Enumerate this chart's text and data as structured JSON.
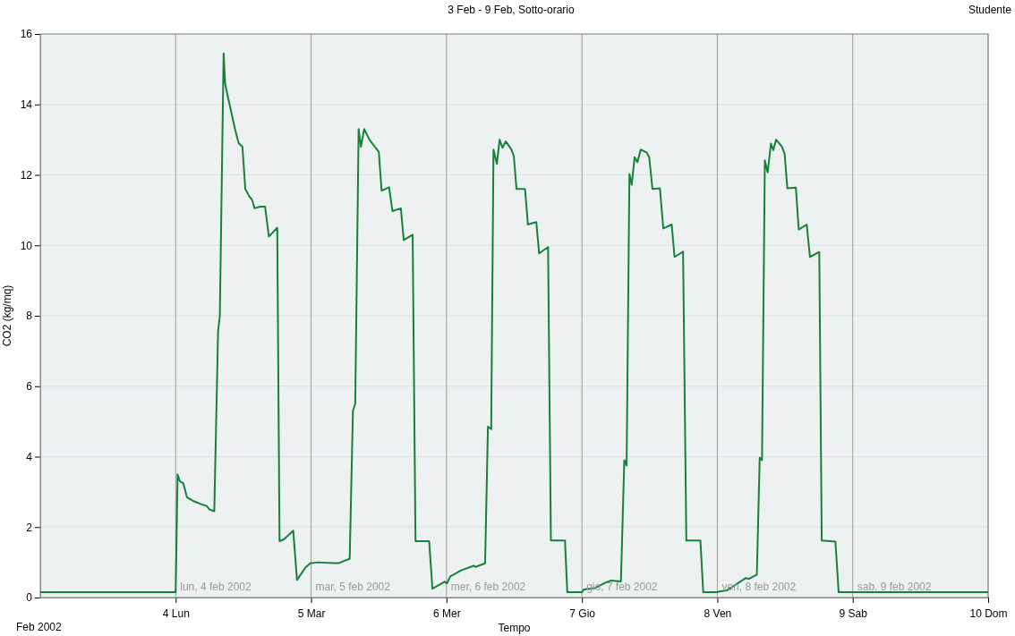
{
  "chart_data": {
    "type": "line",
    "title": "3 Feb - 9 Feb, Sotto-orario",
    "xlabel": "Tempo",
    "ylabel": "CO2 (kg/mq)",
    "annotations": [
      "Studente",
      "Feb  2002",
      "lun, 4 feb 2002",
      "mar, 5 feb 2002",
      "mer, 6 feb 2002",
      "gio, 7 feb 2002",
      "ven, 8 feb 2002",
      "sab, 9 feb 2002"
    ],
    "xlim": [
      3,
      10
    ],
    "xticks": [
      {
        "value": 4,
        "label": "4 Lun"
      },
      {
        "value": 5,
        "label": "5 Mar"
      },
      {
        "value": 6,
        "label": "6 Mer"
      },
      {
        "value": 7,
        "label": "7 Gio"
      },
      {
        "value": 8,
        "label": "8 Ven"
      },
      {
        "value": 9,
        "label": "9 Sab"
      },
      {
        "value": 10,
        "label": "10 Dom"
      }
    ],
    "ylim": [
      0,
      16
    ],
    "yticks": [
      0,
      2,
      4,
      6,
      8,
      10,
      12,
      14,
      16
    ],
    "grid": true,
    "marker": "none",
    "line_style": "solid",
    "series": [
      {
        "color": "#16803c",
        "x": [
          3,
          4,
          4.014,
          4.031,
          4.056,
          4.083,
          4.125,
          4.188,
          4.229,
          4.25,
          4.285,
          4.313,
          4.326,
          4.354,
          4.365,
          4.375,
          4.438,
          4.465,
          4.493,
          4.514,
          4.542,
          4.563,
          4.583,
          4.625,
          4.66,
          4.688,
          4.75,
          4.767,
          4.799,
          4.868,
          4.896,
          4.958,
          4.993,
          5.049,
          5.16,
          5.208,
          5.25,
          5.285,
          5.309,
          5.326,
          5.351,
          5.368,
          5.392,
          5.431,
          5.451,
          5.5,
          5.521,
          5.576,
          5.601,
          5.663,
          5.684,
          5.75,
          5.771,
          5.872,
          5.896,
          5.986,
          6.003,
          6.028,
          6.108,
          6.201,
          6.215,
          6.285,
          6.306,
          6.33,
          6.347,
          6.372,
          6.392,
          6.413,
          6.438,
          6.479,
          6.497,
          6.517,
          6.58,
          6.601,
          6.663,
          6.684,
          6.75,
          6.771,
          6.875,
          6.892,
          7,
          7.014,
          7.097,
          7.167,
          7.212,
          7.288,
          7.313,
          7.33,
          7.351,
          7.368,
          7.389,
          7.41,
          7.434,
          7.479,
          7.497,
          7.521,
          7.576,
          7.601,
          7.663,
          7.684,
          7.747,
          7.771,
          7.875,
          7.896,
          8,
          8.014,
          8.069,
          8.146,
          8.208,
          8.233,
          8.292,
          8.313,
          8.33,
          8.351,
          8.372,
          8.396,
          8.413,
          8.434,
          8.476,
          8.497,
          8.517,
          8.58,
          8.601,
          8.66,
          8.684,
          8.753,
          8.771,
          8.872,
          8.896,
          10
        ],
        "values": [
          0.15,
          0.15,
          3.5,
          3.3,
          3.25,
          2.85,
          2.75,
          2.65,
          2.6,
          2.5,
          2.45,
          7.55,
          8.0,
          15.45,
          14.6,
          14.4,
          13.3,
          12.9,
          12.8,
          11.6,
          11.4,
          11.3,
          11.05,
          11.1,
          11.1,
          10.25,
          10.5,
          1.6,
          1.65,
          1.9,
          0.5,
          0.85,
          0.97,
          1.0,
          0.98,
          0.98,
          1.05,
          1.1,
          5.3,
          5.5,
          13.3,
          12.8,
          13.3,
          13.0,
          12.9,
          12.65,
          11.55,
          11.65,
          10.97,
          11.05,
          10.15,
          10.3,
          1.6,
          1.6,
          0.25,
          0.45,
          0.4,
          0.6,
          0.77,
          0.9,
          0.87,
          0.97,
          4.85,
          4.78,
          12.72,
          12.31,
          13.0,
          12.77,
          12.95,
          12.72,
          12.54,
          11.6,
          11.6,
          10.59,
          10.66,
          9.77,
          9.95,
          1.62,
          1.62,
          0.15,
          0.15,
          0.23,
          0.27,
          0.41,
          0.48,
          0.46,
          3.9,
          3.75,
          12.02,
          11.72,
          12.5,
          12.36,
          12.72,
          12.63,
          12.5,
          11.6,
          11.62,
          10.48,
          10.59,
          9.67,
          9.82,
          1.62,
          1.62,
          0.15,
          0.15,
          0.17,
          0.2,
          0.39,
          0.55,
          0.53,
          0.65,
          3.97,
          3.9,
          12.41,
          12.07,
          12.89,
          12.7,
          13.0,
          12.81,
          12.6,
          11.62,
          11.64,
          10.45,
          10.59,
          9.67,
          9.81,
          1.62,
          1.59,
          0.15,
          0.15
        ]
      }
    ]
  }
}
